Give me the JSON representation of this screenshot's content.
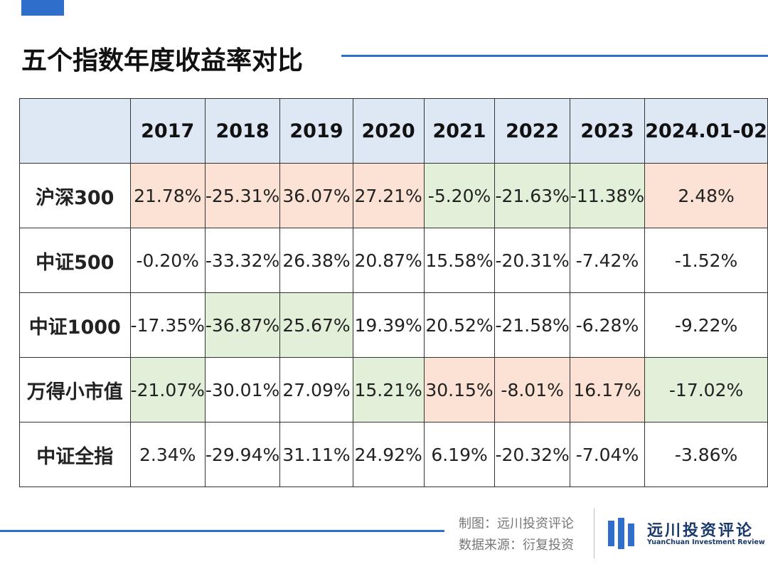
{
  "header": {
    "title": "五个指数年度收益率对比"
  },
  "table": {
    "columns": [
      "2017",
      "2018",
      "2019",
      "2020",
      "2021",
      "2022",
      "2023",
      "2024.01-02"
    ],
    "rows": [
      [
        "沪深300",
        "21.78%",
        "-25.31%",
        "36.07%",
        "27.21%",
        "-5.20%",
        "-21.63%",
        "-11.38%",
        "2.48%"
      ],
      [
        "中证500",
        "-0.20%",
        "-33.32%",
        "26.38%",
        "20.87%",
        "15.58%",
        "-20.31%",
        "-7.42%",
        "-1.52%"
      ],
      [
        "中证1000",
        "-17.35%",
        "-36.87%",
        "25.67%",
        "19.39%",
        "20.52%",
        "-21.58%",
        "-6.28%",
        "-9.22%"
      ],
      [
        "万得小市值",
        "-21.07%",
        "-30.01%",
        "27.09%",
        "15.21%",
        "30.15%",
        "-8.01%",
        "16.17%",
        "-17.02%"
      ],
      [
        "中证全指",
        "2.34%",
        "-29.94%",
        "31.11%",
        "24.92%",
        "6.19%",
        "-20.32%",
        "-7.04%",
        "-3.86%"
      ]
    ],
    "cell_colors": [
      [
        "#fbe2d5",
        "#fbe2d5",
        "#fbe2d5",
        "#fbe2d5",
        "#e2efd9",
        "#e2efd9",
        "#e2efd9",
        "#fbe2d5"
      ],
      [
        null,
        null,
        null,
        null,
        null,
        null,
        null,
        null
      ],
      [
        null,
        "#e2efd9",
        "#e2efd9",
        null,
        null,
        null,
        null,
        null
      ],
      [
        "#e2efd9",
        null,
        null,
        "#e2efd9",
        "#fbe2d5",
        "#fbe2d5",
        "#fbe2d5",
        "#e2efd9"
      ],
      [
        null,
        null,
        null,
        null,
        null,
        null,
        null,
        null
      ]
    ]
  },
  "footer": {
    "credit": "制图：远川投资评论",
    "source": "数据来源：衍复投资",
    "logo_name": "远川投资评论",
    "logo_english": "YuanChuan Investment Review"
  }
}
